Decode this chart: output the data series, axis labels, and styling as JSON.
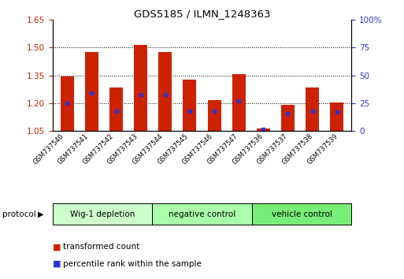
{
  "title": "GDS5185 / ILMN_1248363",
  "samples": [
    "GSM737540",
    "GSM737541",
    "GSM737542",
    "GSM737543",
    "GSM737544",
    "GSM737545",
    "GSM737546",
    "GSM737547",
    "GSM737536",
    "GSM737537",
    "GSM737538",
    "GSM737539"
  ],
  "bar_values": [
    1.345,
    1.475,
    1.285,
    1.515,
    1.475,
    1.325,
    1.215,
    1.355,
    1.065,
    1.19,
    1.285,
    1.205
  ],
  "percentile_values": [
    25,
    34,
    18,
    33,
    33,
    18,
    18,
    27,
    2,
    16,
    18,
    17
  ],
  "ylim_left": [
    1.05,
    1.65
  ],
  "ylim_right": [
    0,
    100
  ],
  "yticks_left": [
    1.05,
    1.2,
    1.35,
    1.5,
    1.65
  ],
  "yticks_right": [
    0,
    25,
    50,
    75,
    100
  ],
  "bar_color": "#cc2200",
  "dot_color": "#3333cc",
  "groups": [
    {
      "label": "Wig-1 depletion",
      "start": 0,
      "end": 3,
      "color": "#ccffcc"
    },
    {
      "label": "negative control",
      "start": 4,
      "end": 7,
      "color": "#aaffaa"
    },
    {
      "label": "vehicle control",
      "start": 8,
      "end": 11,
      "color": "#77ee77"
    }
  ],
  "protocol_label": "protocol",
  "legend_items": [
    {
      "label": "transformed count",
      "color": "#cc2200"
    },
    {
      "label": "percentile rank within the sample",
      "color": "#3333cc"
    }
  ],
  "bar_width": 0.55,
  "bar_base": 1.05,
  "grid_ticks": [
    1.2,
    1.35,
    1.5
  ],
  "tick_label_color_left": "#cc2200",
  "tick_label_color_right": "#3333cc"
}
